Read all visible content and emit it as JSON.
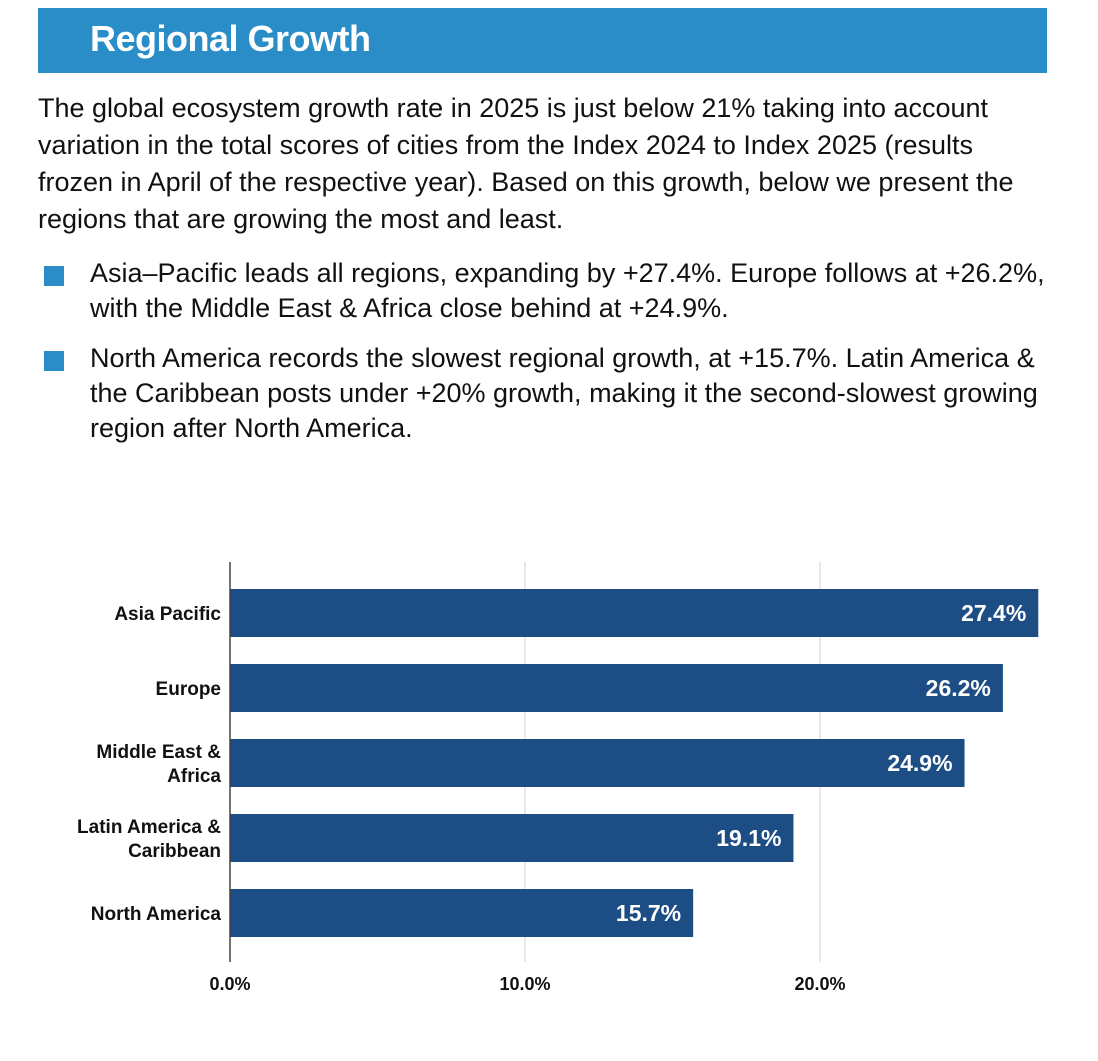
{
  "header": {
    "title": "Regional Growth"
  },
  "intro": "The global ecosystem growth rate in 2025 is just below 21% taking into account variation in the total scores of cities from the Index 2024 to Index 2025 (results frozen in April of the respective year). Based on this growth, below we present the regions that are growing the most and least.",
  "bullets": [
    "Asia–Pacific leads all regions, expanding by +27.4%. Europe follows at +26.2%, with the Middle East & Africa close behind at +24.9%.",
    "North America records the slowest regional growth, at +15.7%. Latin America & the Caribbean posts under +20% growth, making it the second-slowest growing region after North America."
  ],
  "colors": {
    "header": "#2a8dc8",
    "bar": "#1c4e85",
    "grid": "#d0d0d0"
  },
  "chart_data": {
    "type": "bar",
    "orientation": "horizontal",
    "categories": [
      [
        "Asia Pacific"
      ],
      [
        "Europe"
      ],
      [
        "Middle East &",
        "Africa"
      ],
      [
        "Latin America &",
        "Caribbean"
      ],
      [
        "North America"
      ]
    ],
    "values": [
      27.4,
      26.2,
      24.9,
      19.1,
      15.7
    ],
    "value_labels": [
      "27.4%",
      "26.2%",
      "24.9%",
      "19.1%",
      "15.7%"
    ],
    "xticks": [
      0,
      10,
      20
    ],
    "xtick_labels": [
      "0.0%",
      "10.0%",
      "20.0%"
    ],
    "xlim": [
      0,
      29
    ],
    "grid": true
  }
}
